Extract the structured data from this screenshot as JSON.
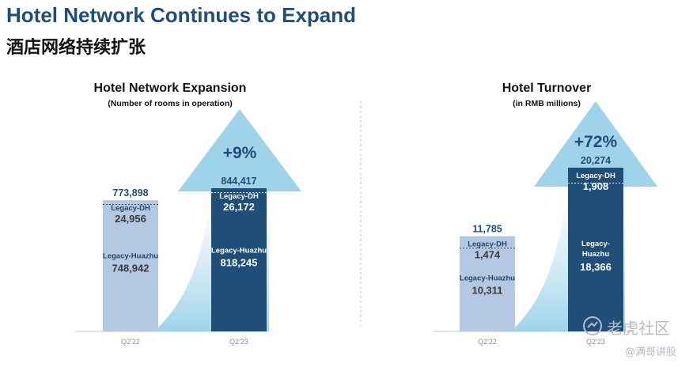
{
  "header": {
    "title": "Hotel Network Continues to Expand",
    "subtitle": "酒店网络持续扩张"
  },
  "watermark": {
    "site": "老虎社区",
    "author": "@满哥讲股"
  },
  "colors": {
    "dark_blue": "#1f4e79",
    "light_bar": "#b4c8e1",
    "dark_bar": "#1f4e79",
    "arrow": "#9ed3ea",
    "dh_label_light": "#27456b",
    "dh_label_dark": "#ffffff"
  },
  "chart_data": [
    {
      "type": "bar",
      "stacked": true,
      "title": "Hotel Network Expansion",
      "subtitle": "(Number of rooms in operation)",
      "categories": [
        "Q2'22",
        "Q2'23"
      ],
      "totals": [
        773898,
        844417
      ],
      "totals_text": [
        "773,898",
        "844,417"
      ],
      "growth_label": "+9%",
      "series": [
        {
          "name": "Legacy-Huazhu",
          "values": [
            748942,
            818245
          ],
          "labels": [
            "748,942",
            "818,245"
          ]
        },
        {
          "name": "Legacy-DH",
          "values": [
            24956,
            26172
          ],
          "labels": [
            "24,956",
            "26,172"
          ]
        }
      ]
    },
    {
      "type": "bar",
      "stacked": true,
      "title": "Hotel Turnover",
      "subtitle": "(in RMB millions)",
      "categories": [
        "Q2'22",
        "Q2'23"
      ],
      "totals": [
        11785,
        20274
      ],
      "totals_text": [
        "11,785",
        "20,274"
      ],
      "growth_label": "+72%",
      "series": [
        {
          "name": "Legacy-Huazhu",
          "values": [
            10311,
            18366
          ],
          "labels": [
            "10,311",
            "18,366"
          ]
        },
        {
          "name": "Legacy-DH",
          "values": [
            1474,
            1908
          ],
          "labels": [
            "1,474",
            "1,908"
          ]
        }
      ]
    }
  ]
}
